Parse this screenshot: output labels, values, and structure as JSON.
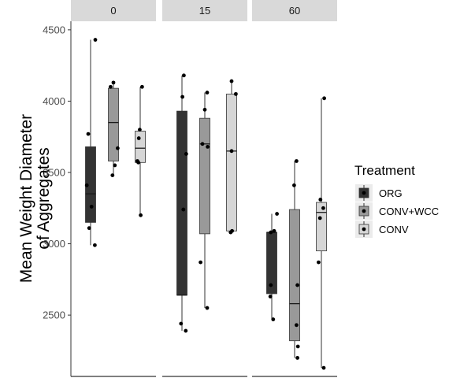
{
  "chart_data": {
    "type": "box",
    "ylabel_lines": [
      "Mean Weight Diameter",
      "of Aggregates"
    ],
    "ylim": [
      2070,
      4560
    ],
    "yticks": [
      2500,
      3000,
      3500,
      4000,
      4500
    ],
    "facets": [
      "0",
      "15",
      "60"
    ],
    "legend": {
      "title": "Treatment",
      "position": "right",
      "entries": [
        "ORG",
        "CONV+WCC",
        "CONV"
      ]
    },
    "colors": {
      "ORG": "#333333",
      "CONV+WCC": "#999999",
      "CONV": "#d6d6d6",
      "strip_bg": "#d9d9d9",
      "axis": "#333333",
      "point": "#000000"
    },
    "boxes": [
      {
        "facet": "0",
        "treatment": "ORG",
        "min": 2990,
        "q1": 3150,
        "median": 3350,
        "q3": 3680,
        "max": 4430
      },
      {
        "facet": "0",
        "treatment": "CONV+WCC",
        "min": 3480,
        "q1": 3580,
        "median": 3850,
        "q3": 4090,
        "max": 4130
      },
      {
        "facet": "0",
        "treatment": "CONV",
        "min": 3200,
        "q1": 3570,
        "median": 3670,
        "q3": 3790,
        "max": 4100
      },
      {
        "facet": "15",
        "treatment": "ORG",
        "min": 2390,
        "q1": 2640,
        "median": 2640,
        "q3": 3930,
        "max": 4180
      },
      {
        "facet": "15",
        "treatment": "CONV+WCC",
        "min": 2550,
        "q1": 3070,
        "median": 3700,
        "q3": 3880,
        "max": 4060
      },
      {
        "facet": "15",
        "treatment": "CONV",
        "min": 3080,
        "q1": 3090,
        "median": 3650,
        "q3": 4050,
        "max": 4140
      },
      {
        "facet": "60",
        "treatment": "ORG",
        "min": 2470,
        "q1": 2650,
        "median": 3080,
        "q3": 3080,
        "max": 3210
      },
      {
        "facet": "60",
        "treatment": "CONV+WCC",
        "min": 2200,
        "q1": 2320,
        "median": 2580,
        "q3": 3240,
        "max": 3580
      },
      {
        "facet": "60",
        "treatment": "CONV",
        "min": 2130,
        "q1": 2950,
        "median": 3220,
        "q3": 3290,
        "max": 4020
      }
    ],
    "points": [
      {
        "facet": "0",
        "treatment": "ORG",
        "values": [
          4430,
          3770,
          3410,
          3260,
          3110,
          2990
        ],
        "jitter": [
          1.0,
          -0.5,
          -0.8,
          0.2,
          -0.3,
          0.9
        ]
      },
      {
        "facet": "0",
        "treatment": "CONV+WCC",
        "values": [
          4130,
          4100,
          3670,
          3550,
          3480
        ],
        "jitter": [
          0.0,
          -0.6,
          0.9,
          0.3,
          -0.2
        ]
      },
      {
        "facet": "0",
        "treatment": "CONV",
        "values": [
          4100,
          3800,
          3740,
          3580,
          3570,
          3200
        ],
        "jitter": [
          0.4,
          -0.1,
          -0.3,
          -0.6,
          -0.4,
          0.1
        ]
      },
      {
        "facet": "15",
        "treatment": "ORG",
        "values": [
          4180,
          4030,
          3630,
          3240,
          2440,
          2390
        ],
        "jitter": [
          0.4,
          0.1,
          0.9,
          0.3,
          -0.2,
          0.8
        ]
      },
      {
        "facet": "15",
        "treatment": "CONV+WCC",
        "values": [
          4060,
          3940,
          3700,
          3680,
          2870,
          2550
        ],
        "jitter": [
          0.5,
          0.0,
          -0.5,
          0.6,
          -0.9,
          0.5
        ]
      },
      {
        "facet": "15",
        "treatment": "CONV",
        "values": [
          4140,
          4050,
          3650,
          3090,
          3080
        ],
        "jitter": [
          0.0,
          0.9,
          0.0,
          0.1,
          -0.2
        ]
      },
      {
        "facet": "60",
        "treatment": "ORG",
        "values": [
          3210,
          3090,
          3080,
          2710,
          2630,
          2470
        ],
        "jitter": [
          1.1,
          0.5,
          -0.2,
          -0.2,
          -0.3,
          0.3
        ]
      },
      {
        "facet": "60",
        "treatment": "CONV+WCC",
        "values": [
          3580,
          3410,
          2710,
          2430,
          2280,
          2200
        ],
        "jitter": [
          0.4,
          -0.1,
          0.6,
          0.4,
          0.7,
          0.6
        ]
      },
      {
        "facet": "60",
        "treatment": "CONV",
        "values": [
          4020,
          3310,
          3250,
          3180,
          2870,
          2130
        ],
        "jitter": [
          0.6,
          -0.2,
          0.4,
          -0.3,
          -0.6,
          0.5
        ]
      }
    ]
  }
}
